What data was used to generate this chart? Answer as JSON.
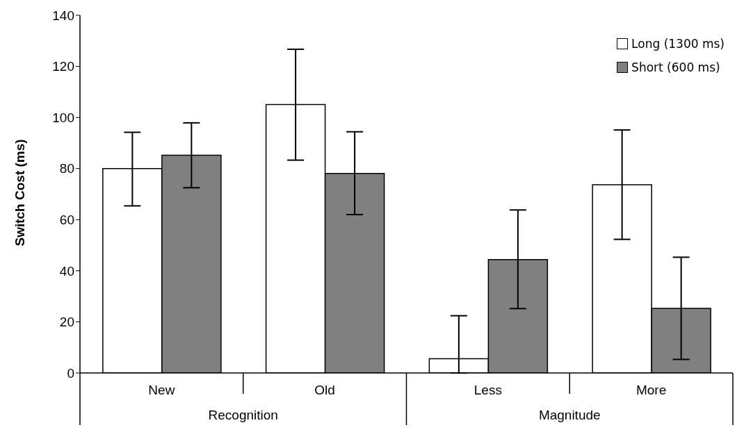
{
  "chart_data": {
    "type": "bar",
    "ylabel": "Switch Cost (ms)",
    "categories": [
      "New",
      "Old",
      "Less",
      "More"
    ],
    "series": [
      {
        "name": "Long (1300 ms)",
        "color": "#ffffff",
        "values": [
          80,
          105.1,
          5.6,
          73.7
        ],
        "errors": [
          [
            65.4,
            94.2
          ],
          [
            83.3,
            126.7
          ],
          [
            0,
            22.4
          ],
          [
            52.3,
            95.1
          ]
        ]
      },
      {
        "name": "Short (600 ms)",
        "color": "#808080",
        "values": [
          85.2,
          78.1,
          44.4,
          25.3
        ],
        "errors": [
          [
            72.5,
            97.9
          ],
          [
            62,
            94.4
          ],
          [
            25.2,
            63.8
          ],
          [
            5.3,
            45.3
          ]
        ]
      }
    ],
    "annotations": [
      "Recognition",
      "Magnitude"
    ],
    "ylim": [
      0,
      140
    ],
    "yticks": [
      0,
      20,
      40,
      60,
      80,
      100,
      120,
      140
    ],
    "grid": false,
    "legend": "top right"
  }
}
